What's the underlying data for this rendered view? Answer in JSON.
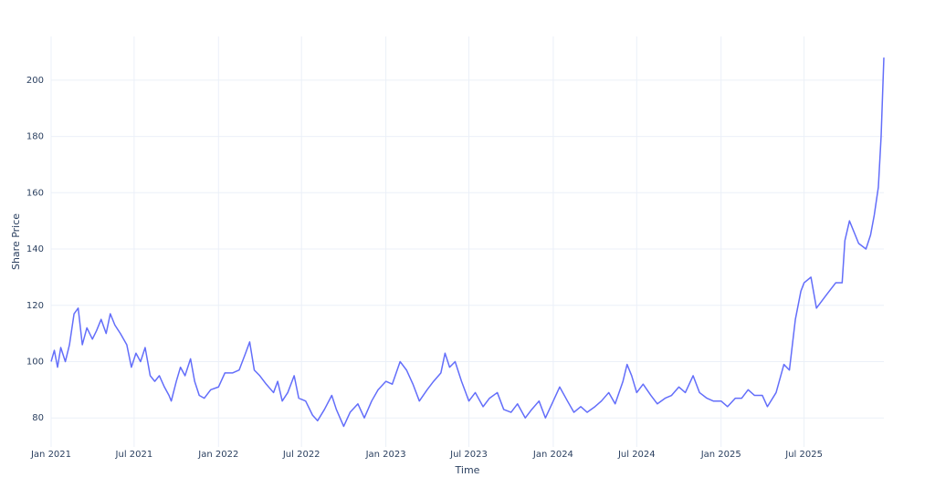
{
  "chart_data": {
    "type": "line",
    "x_title": "Time",
    "y_title": "Share Price",
    "color": "#636efa",
    "grid": true,
    "x": [
      "2021-01-01",
      "2021-01-08",
      "2021-01-15",
      "2021-01-22",
      "2021-02-01",
      "2021-02-10",
      "2021-02-20",
      "2021-03-01",
      "2021-03-10",
      "2021-03-20",
      "2021-04-01",
      "2021-04-10",
      "2021-04-20",
      "2021-05-01",
      "2021-05-10",
      "2021-05-20",
      "2021-06-01",
      "2021-06-15",
      "2021-06-25",
      "2021-07-05",
      "2021-07-15",
      "2021-07-25",
      "2021-08-05",
      "2021-08-15",
      "2021-08-25",
      "2021-09-05",
      "2021-09-15",
      "2021-09-20",
      "2021-10-01",
      "2021-10-10",
      "2021-10-20",
      "2021-11-01",
      "2021-11-10",
      "2021-11-20",
      "2021-12-01",
      "2021-12-15",
      "2022-01-01",
      "2022-01-15",
      "2022-02-01",
      "2022-02-15",
      "2022-03-01",
      "2022-03-10",
      "2022-03-20",
      "2022-04-01",
      "2022-04-15",
      "2022-05-01",
      "2022-05-10",
      "2022-05-20",
      "2022-06-01",
      "2022-06-15",
      "2022-06-25",
      "2022-07-10",
      "2022-07-25",
      "2022-08-05",
      "2022-08-20",
      "2022-09-05",
      "2022-09-15",
      "2022-10-01",
      "2022-10-15",
      "2022-11-01",
      "2022-11-15",
      "2022-12-01",
      "2022-12-15",
      "2023-01-01",
      "2023-01-15",
      "2023-02-01",
      "2023-02-15",
      "2023-03-01",
      "2023-03-15",
      "2023-04-01",
      "2023-04-15",
      "2023-05-01",
      "2023-05-10",
      "2023-05-20",
      "2023-06-01",
      "2023-06-15",
      "2023-07-01",
      "2023-07-15",
      "2023-08-01",
      "2023-08-15",
      "2023-09-01",
      "2023-09-15",
      "2023-10-01",
      "2023-10-15",
      "2023-11-01",
      "2023-11-15",
      "2023-12-01",
      "2023-12-15",
      "2024-01-01",
      "2024-01-15",
      "2024-02-01",
      "2024-02-15",
      "2024-03-01",
      "2024-03-15",
      "2024-04-01",
      "2024-04-15",
      "2024-05-01",
      "2024-05-15",
      "2024-06-01",
      "2024-06-10",
      "2024-06-20",
      "2024-07-01",
      "2024-07-15",
      "2024-08-01",
      "2024-08-15",
      "2024-09-01",
      "2024-09-15",
      "2024-10-01",
      "2024-10-15",
      "2024-11-01",
      "2024-11-15",
      "2024-12-01",
      "2024-12-15",
      "2025-01-01",
      "2025-01-15",
      "2025-02-01",
      "2025-02-15",
      "2025-03-01",
      "2025-03-15",
      "2025-04-01",
      "2025-04-12",
      "2025-05-01",
      "2025-05-18",
      "2025-05-30",
      "2025-06-12",
      "2025-06-24",
      "2025-07-01",
      "2025-07-16",
      "2025-07-28",
      "2025-08-20",
      "2025-09-08",
      "2025-09-22",
      "2025-09-28",
      "2025-10-08",
      "2025-10-18",
      "2025-10-28",
      "2025-11-13",
      "2025-11-23",
      "2025-12-01",
      "2025-12-10",
      "2025-12-16",
      "2025-12-22"
    ],
    "values": [
      100,
      104,
      98,
      105,
      100,
      106,
      117,
      119,
      106,
      112,
      108,
      111,
      115,
      110,
      117,
      113,
      110,
      106,
      98,
      103,
      100,
      105,
      95,
      93,
      95,
      91,
      88,
      86,
      93,
      98,
      95,
      101,
      93,
      88,
      87,
      90,
      91,
      96,
      96,
      97,
      103,
      107,
      97,
      95,
      92,
      89,
      93,
      86,
      89,
      95,
      87,
      86,
      81,
      79,
      83,
      88,
      83,
      77,
      82,
      85,
      80,
      86,
      90,
      93,
      92,
      100,
      97,
      92,
      86,
      90,
      93,
      96,
      103,
      98,
      100,
      93,
      86,
      89,
      84,
      87,
      89,
      83,
      82,
      85,
      80,
      83,
      86,
      80,
      86,
      91,
      86,
      82,
      84,
      82,
      84,
      86,
      89,
      85,
      93,
      99,
      95,
      89,
      92,
      88,
      85,
      87,
      88,
      91,
      89,
      95,
      89,
      87,
      86,
      86,
      84,
      87,
      87,
      90,
      88,
      88,
      84,
      89,
      99,
      97,
      115,
      125,
      128,
      130,
      119,
      124,
      128,
      128,
      143,
      150,
      146,
      142,
      140,
      145,
      152,
      162,
      180,
      208
    ],
    "xlim": [
      "2021-01-01",
      "2025-12-22"
    ],
    "xticks": [
      {
        "value": "2021-01-01",
        "label": "Jan 2021"
      },
      {
        "value": "2021-07-01",
        "label": "Jul 2021"
      },
      {
        "value": "2022-01-01",
        "label": "Jan 2022"
      },
      {
        "value": "2022-07-01",
        "label": "Jul 2022"
      },
      {
        "value": "2023-01-01",
        "label": "Jan 2023"
      },
      {
        "value": "2023-07-01",
        "label": "Jul 2023"
      },
      {
        "value": "2024-01-01",
        "label": "Jan 2024"
      },
      {
        "value": "2024-07-01",
        "label": "Jul 2024"
      },
      {
        "value": "2025-01-01",
        "label": "Jan 2025"
      },
      {
        "value": "2025-07-01",
        "label": "Jul 2025"
      }
    ],
    "ylim": [
      69.7,
      215.5
    ],
    "yticks": [
      80,
      100,
      120,
      140,
      160,
      180,
      200
    ]
  }
}
